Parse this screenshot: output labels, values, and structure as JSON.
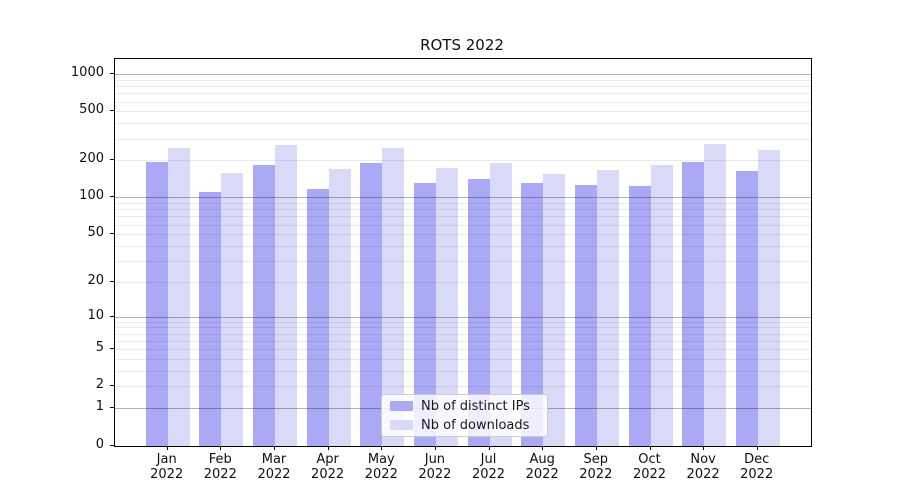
{
  "chart_data": {
    "type": "bar",
    "title": "ROTS 2022",
    "yscale": "symlog(1+x), base 10",
    "categories": [
      "Jan",
      "Feb",
      "Mar",
      "Apr",
      "May",
      "Jun",
      "Jul",
      "Aug",
      "Sep",
      "Oct",
      "Nov",
      "Dec"
    ],
    "year_suffix": "2022",
    "series": [
      {
        "name": "Nb of distinct IPs",
        "color": "#a9a9f5",
        "values": [
          193,
          111,
          182,
          117,
          189,
          131,
          140,
          131,
          127,
          125,
          193,
          163
        ]
      },
      {
        "name": "Nb of downloads",
        "color": "#d9d9f8",
        "values": [
          252,
          157,
          267,
          169,
          250,
          173,
          189,
          156,
          166,
          182,
          272,
          243
        ]
      }
    ],
    "yticks": [
      1000,
      500,
      200,
      100,
      50,
      20,
      10,
      5,
      2,
      1,
      0
    ],
    "ylim": [
      0,
      1280
    ],
    "grid": true,
    "grid_major_color": "rgba(0,0,0,0.30)",
    "grid_minor_color": "rgba(0,0,0,0.08)",
    "legend_position": "bottom-center",
    "background_color": "#ffffff"
  }
}
